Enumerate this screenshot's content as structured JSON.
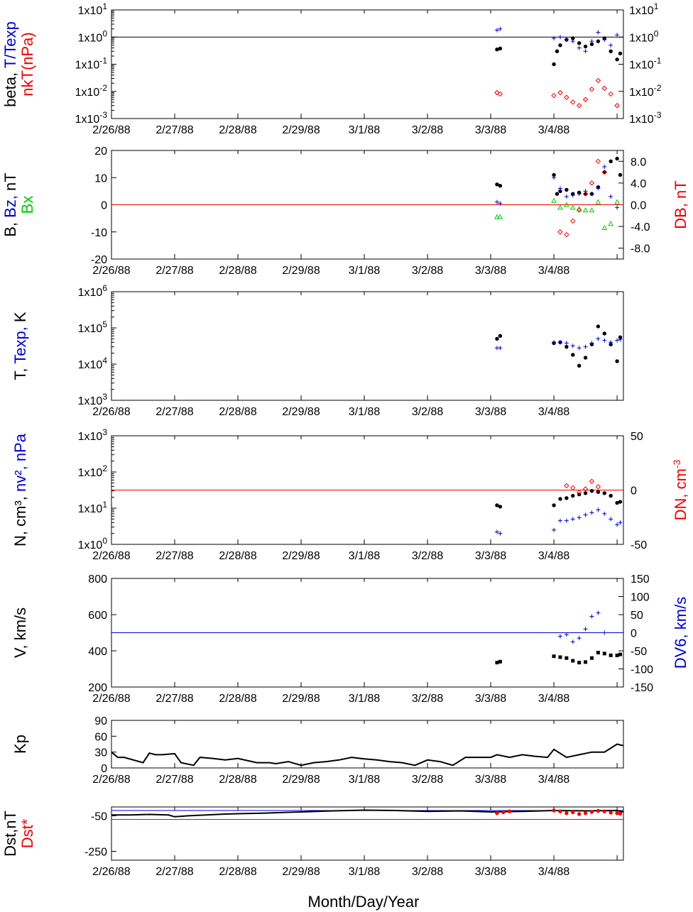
{
  "colors": {
    "black": "#000000",
    "blue": "#0000cc",
    "red": "#ee0000",
    "green": "#00cc00"
  },
  "x_axis": {
    "title": "Month/Day/Year",
    "ticks": [
      "2/26/88",
      "2/27/88",
      "2/28/88",
      "2/29/88",
      "3/1/88",
      "3/2/88",
      "3/3/88",
      "3/4/88"
    ]
  },
  "chart_data": [
    {
      "id": "beta",
      "type": "scatter",
      "ylabel_parts": [
        {
          "text": "beta, ",
          "color": "#000000",
          "line": 0
        },
        {
          "text": "T/Texp",
          "color": "#0000cc",
          "line": 0
        },
        {
          "text": "nkT(nPa)",
          "color": "#ee0000",
          "line": 1
        }
      ],
      "yscale": "log",
      "ylim": [
        0.001,
        10
      ],
      "yticks_left": [
        "1x10^-3",
        "1x10^-2",
        "1x10^-1",
        "1x10^0",
        "1x10^1"
      ],
      "yticks_right": [
        "1x10^-3",
        "1x10^-2",
        "1x10^-1",
        "1x10^0",
        "1x10^1"
      ],
      "reference_lines": [
        {
          "y": 1,
          "color": "#000000"
        }
      ],
      "series": [
        {
          "marker": "dot",
          "color": "#000000",
          "x": [
            6.1,
            6.15,
            7.0,
            7.05,
            7.1,
            7.2,
            7.3,
            7.4,
            7.5,
            7.6,
            7.7,
            7.8,
            7.9,
            8.0,
            8.05
          ],
          "y": [
            0.35,
            0.38,
            0.1,
            0.3,
            0.5,
            0.8,
            0.9,
            0.6,
            0.45,
            0.55,
            0.7,
            0.9,
            0.3,
            0.15,
            0.25
          ]
        },
        {
          "marker": "plus",
          "color": "#0000cc",
          "x": [
            6.1,
            6.15,
            7.0,
            7.1,
            7.2,
            7.3,
            7.4,
            7.5,
            7.6,
            7.7,
            7.8,
            7.9,
            8.0
          ],
          "y": [
            1.8,
            2.0,
            0.9,
            1.0,
            0.8,
            0.7,
            0.4,
            0.3,
            0.7,
            1.5,
            0.8,
            0.5,
            1.2
          ]
        },
        {
          "marker": "diamond",
          "color": "#ee0000",
          "x": [
            6.1,
            6.15,
            7.0,
            7.1,
            7.2,
            7.3,
            7.4,
            7.5,
            7.6,
            7.7,
            7.8,
            7.9,
            8.0
          ],
          "y": [
            0.009,
            0.008,
            0.007,
            0.009,
            0.006,
            0.004,
            0.003,
            0.005,
            0.012,
            0.025,
            0.013,
            0.008,
            0.003
          ]
        }
      ]
    },
    {
      "id": "bfield",
      "type": "scatter",
      "ylabel_parts": [
        {
          "text": "B, ",
          "color": "#000000",
          "line": 0
        },
        {
          "text": "Bz, ",
          "color": "#0000cc",
          "line": 0
        },
        {
          "text": "nT",
          "color": "#000000",
          "line": 0
        },
        {
          "text": "Bx",
          "color": "#00cc00",
          "line": 1
        }
      ],
      "ylim": [
        -20,
        20
      ],
      "yticks_left": [
        "-20",
        "-10",
        "0",
        "10",
        "20"
      ],
      "right_axis": {
        "label": "DB, nT",
        "color": "#ee0000",
        "ylim": [
          -10,
          10
        ],
        "ticks": [
          "-8.0",
          "-4.0",
          "0.0",
          "4.0",
          "8.0"
        ]
      },
      "reference_lines": [
        {
          "y": 0,
          "color": "#ee0000"
        }
      ],
      "series": [
        {
          "marker": "dot",
          "color": "#000000",
          "x": [
            6.1,
            6.15,
            7.0,
            7.05,
            7.1,
            7.2,
            7.3,
            7.4,
            7.5,
            7.6,
            7.7,
            7.8,
            7.9,
            8.0,
            8.05
          ],
          "y": [
            7.5,
            7.0,
            11.0,
            4.0,
            5.0,
            5.5,
            4.0,
            4.5,
            4.0,
            4.0,
            6.5,
            12.0,
            16.0,
            17.0,
            11.0
          ]
        },
        {
          "marker": "plus",
          "color": "#0000cc",
          "x": [
            6.1,
            6.15,
            7.0,
            7.1,
            7.2,
            7.3,
            7.4,
            7.5,
            7.6,
            7.7,
            7.8,
            7.9,
            8.0
          ],
          "y": [
            1.0,
            0.5,
            10.0,
            6.0,
            3.0,
            3.5,
            4.0,
            5.0,
            4.0,
            6.0,
            14.0,
            3.0,
            -1.0
          ]
        },
        {
          "marker": "triangle",
          "color": "#00cc00",
          "x": [
            6.1,
            6.15,
            7.0,
            7.1,
            7.2,
            7.3,
            7.4,
            7.5,
            7.6,
            7.7,
            7.8,
            7.9,
            8.0
          ],
          "y": [
            -4.5,
            -4.5,
            1.5,
            -1.0,
            0.0,
            -1.0,
            -1.5,
            -2.0,
            -2.0,
            1.0,
            -8.5,
            -7.0,
            1.0
          ]
        },
        {
          "marker": "diamond",
          "color": "#ee0000",
          "axis": "right",
          "x": [
            7.1,
            7.2,
            7.3,
            7.4,
            7.5,
            7.6,
            7.7,
            7.8
          ],
          "y": [
            -5.0,
            -5.5,
            -3.0,
            -1.0,
            2.0,
            4.0,
            8.0,
            6.0
          ]
        }
      ]
    },
    {
      "id": "temperature",
      "type": "scatter",
      "ylabel_parts": [
        {
          "text": "T, ",
          "color": "#000000",
          "line": 0
        },
        {
          "text": "Texp, ",
          "color": "#0000cc",
          "line": 0
        },
        {
          "text": "K",
          "color": "#000000",
          "line": 0
        }
      ],
      "yscale": "log",
      "ylim": [
        1000,
        1000000
      ],
      "yticks_left": [
        "1x10^3",
        "1x10^4",
        "1x10^5",
        "1x10^6"
      ],
      "series": [
        {
          "marker": "dot",
          "color": "#000000",
          "x": [
            6.1,
            6.15,
            7.0,
            7.1,
            7.2,
            7.3,
            7.4,
            7.5,
            7.6,
            7.7,
            7.8,
            7.9,
            8.0,
            8.05
          ],
          "y": [
            50000,
            60000,
            38000,
            40000,
            30000,
            18000,
            9000,
            15000,
            35000,
            110000,
            70000,
            35000,
            12000,
            55000
          ]
        },
        {
          "marker": "plus",
          "color": "#0000cc",
          "x": [
            6.1,
            6.15,
            7.0,
            7.1,
            7.2,
            7.3,
            7.4,
            7.5,
            7.6,
            7.7,
            7.8,
            7.9,
            8.0,
            8.05
          ],
          "y": [
            28000,
            28000,
            40000,
            40000,
            38000,
            32000,
            28000,
            30000,
            38000,
            50000,
            45000,
            40000,
            45000,
            48000
          ]
        }
      ]
    },
    {
      "id": "density",
      "type": "scatter",
      "ylabel_parts": [
        {
          "text": "N, cm³, ",
          "color": "#000000",
          "line": 0
        },
        {
          "text": "nv², nPa",
          "color": "#0000cc",
          "line": 0
        }
      ],
      "yscale": "log",
      "ylim": [
        1,
        1000
      ],
      "yticks_left": [
        "1x10^0",
        "1x10^1",
        "1x10^2",
        "1x10^3"
      ],
      "right_axis": {
        "label": "DN, cm^-3",
        "color": "#ee0000",
        "ylim": [
          -50,
          50
        ],
        "ticks": [
          "-50",
          "0",
          "50"
        ]
      },
      "reference_lines": [
        {
          "y": 0,
          "color": "#ee0000",
          "axis": "right"
        }
      ],
      "series": [
        {
          "marker": "dot",
          "color": "#000000",
          "x": [
            6.1,
            6.15,
            7.0,
            7.1,
            7.2,
            7.3,
            7.4,
            7.5,
            7.6,
            7.7,
            7.8,
            7.9,
            8.0,
            8.05
          ],
          "y": [
            12,
            11,
            12,
            18,
            19,
            22,
            24,
            26,
            30,
            28,
            26,
            22,
            14,
            15
          ]
        },
        {
          "marker": "plus",
          "color": "#0000cc",
          "x": [
            6.1,
            6.15,
            7.0,
            7.1,
            7.2,
            7.3,
            7.4,
            7.5,
            7.6,
            7.7,
            7.8,
            7.9,
            8.0,
            8.05
          ],
          "y": [
            2.2,
            2.0,
            2.5,
            4.5,
            4.5,
            5.0,
            5.5,
            6.5,
            7.5,
            9.0,
            7.0,
            5.0,
            3.5,
            4.0
          ]
        },
        {
          "marker": "diamond",
          "color": "#ee0000",
          "axis": "right",
          "x": [
            7.2,
            7.3,
            7.4,
            7.5,
            7.6,
            7.7
          ],
          "y": [
            4.0,
            2.0,
            -2.0,
            1.0,
            8.0,
            3.0
          ]
        }
      ]
    },
    {
      "id": "velocity",
      "type": "scatter",
      "ylabel_parts": [
        {
          "text": "V, km/s",
          "color": "#000000",
          "line": 0
        }
      ],
      "ylim": [
        200,
        800
      ],
      "yticks_left": [
        "200",
        "400",
        "600",
        "800"
      ],
      "right_axis": {
        "label": "DV6, km/s",
        "color": "#0000cc",
        "ylim": [
          -150,
          150
        ],
        "ticks": [
          "-150",
          "-100",
          "-50",
          "0",
          "50",
          "100",
          "150"
        ]
      },
      "reference_lines": [
        {
          "y": 0,
          "color": "#0000cc",
          "axis": "right"
        }
      ],
      "series": [
        {
          "marker": "square",
          "color": "#000000",
          "x": [
            6.1,
            6.15,
            7.0,
            7.1,
            7.2,
            7.3,
            7.4,
            7.5,
            7.6,
            7.7,
            7.8,
            7.9,
            8.0,
            8.05
          ],
          "y": [
            335,
            340,
            370,
            365,
            360,
            345,
            335,
            338,
            360,
            390,
            385,
            375,
            375,
            380
          ]
        },
        {
          "marker": "plus",
          "color": "#0000cc",
          "axis": "right",
          "x": [
            7.1,
            7.2,
            7.3,
            7.4,
            7.5,
            7.6,
            7.7,
            7.8
          ],
          "y": [
            -10,
            -5,
            -25,
            -15,
            10,
            45,
            55,
            0
          ]
        }
      ]
    },
    {
      "id": "kp",
      "type": "line",
      "ylabel_parts": [
        {
          "text": "Kp",
          "color": "#000000",
          "line": 0
        }
      ],
      "ylim": [
        0,
        90
      ],
      "yticks_left": [
        "0",
        "30",
        "60",
        "90"
      ],
      "series": [
        {
          "marker": "line",
          "color": "#000000",
          "x": [
            0.0,
            0.1,
            0.2,
            0.5,
            0.6,
            0.7,
            0.8,
            1.0,
            1.1,
            1.3,
            1.4,
            1.6,
            1.8,
            2.0,
            2.3,
            2.5,
            2.6,
            2.8,
            3.0,
            3.2,
            3.4,
            3.6,
            3.8,
            4.0,
            4.2,
            4.4,
            4.6,
            4.8,
            5.0,
            5.2,
            5.4,
            5.6,
            5.8,
            6.0,
            6.1,
            6.3,
            6.5,
            6.7,
            6.9,
            7.0,
            7.2,
            7.4,
            7.6,
            7.8,
            8.0,
            8.1
          ],
          "y": [
            30,
            20,
            20,
            10,
            28,
            25,
            25,
            27,
            10,
            5,
            20,
            18,
            15,
            18,
            10,
            10,
            8,
            12,
            5,
            10,
            12,
            15,
            20,
            17,
            15,
            12,
            10,
            5,
            15,
            12,
            5,
            20,
            20,
            20,
            25,
            20,
            25,
            22,
            20,
            35,
            20,
            25,
            30,
            30,
            45,
            42
          ]
        }
      ]
    },
    {
      "id": "dst",
      "type": "line",
      "ylabel_parts": [
        {
          "text": "Dst,nT",
          "color": "#000000",
          "line": 0
        },
        {
          "text": "Dst*",
          "color": "#ee0000",
          "line": 1
        }
      ],
      "ylim": [
        -300,
        0
      ],
      "yticks_left": [
        "-250",
        "-50"
      ],
      "reference_lines": [
        {
          "y": -20,
          "color": "#0000cc"
        },
        {
          "y": -70,
          "color": "#ee0000"
        }
      ],
      "series": [
        {
          "marker": "line",
          "color": "#000000",
          "x": [
            0.0,
            0.3,
            0.6,
            0.9,
            1.0,
            1.2,
            1.5,
            1.8,
            2.0,
            2.4,
            2.8,
            3.0,
            3.5,
            4.0,
            4.5,
            5.0,
            5.5,
            6.0,
            6.5,
            7.0,
            7.5,
            8.0,
            8.1
          ],
          "y": [
            -45,
            -45,
            -42,
            -45,
            -55,
            -50,
            -45,
            -40,
            -38,
            -35,
            -30,
            -28,
            -22,
            -18,
            -20,
            -25,
            -22,
            -28,
            -25,
            -20,
            -22,
            -20,
            -28
          ]
        },
        {
          "marker": "dot",
          "color": "#ee0000",
          "x": [
            6.1,
            6.2,
            6.3,
            7.0,
            7.1,
            7.2,
            7.3,
            7.4,
            7.5,
            7.6,
            7.7,
            7.8,
            7.9,
            8.0,
            8.05
          ],
          "y": [
            -35,
            -30,
            -25,
            -20,
            -25,
            -35,
            -30,
            -40,
            -35,
            -28,
            -22,
            -25,
            -32,
            -35,
            -38
          ]
        }
      ]
    }
  ]
}
